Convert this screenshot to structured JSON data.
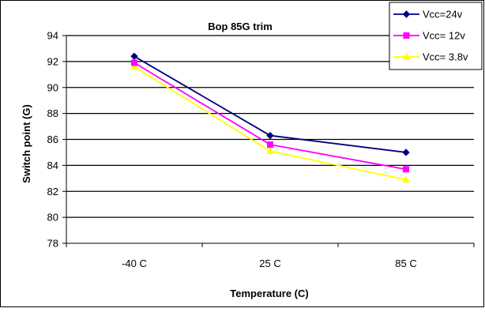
{
  "chart_data": {
    "type": "line",
    "title": "Bop 85G trim",
    "xlabel": "Temperature (C)",
    "ylabel": "Switch point (G)",
    "categories": [
      "-40 C",
      "25 C",
      "85 C"
    ],
    "ylim": [
      78,
      94
    ],
    "yticks": [
      78,
      80,
      82,
      84,
      86,
      88,
      90,
      92,
      94
    ],
    "grid": true,
    "legend_position": "top-right",
    "series": [
      {
        "name": "Vcc=24v",
        "values": [
          92.4,
          86.3,
          85.0
        ],
        "color": "#000080",
        "marker": "diamond"
      },
      {
        "name": "Vcc= 12v",
        "values": [
          91.9,
          85.6,
          83.7
        ],
        "color": "#FF00FF",
        "marker": "square"
      },
      {
        "name": "Vcc= 3.8v",
        "values": [
          91.6,
          85.1,
          82.9
        ],
        "color": "#FFFF00",
        "marker": "triangle"
      }
    ]
  }
}
